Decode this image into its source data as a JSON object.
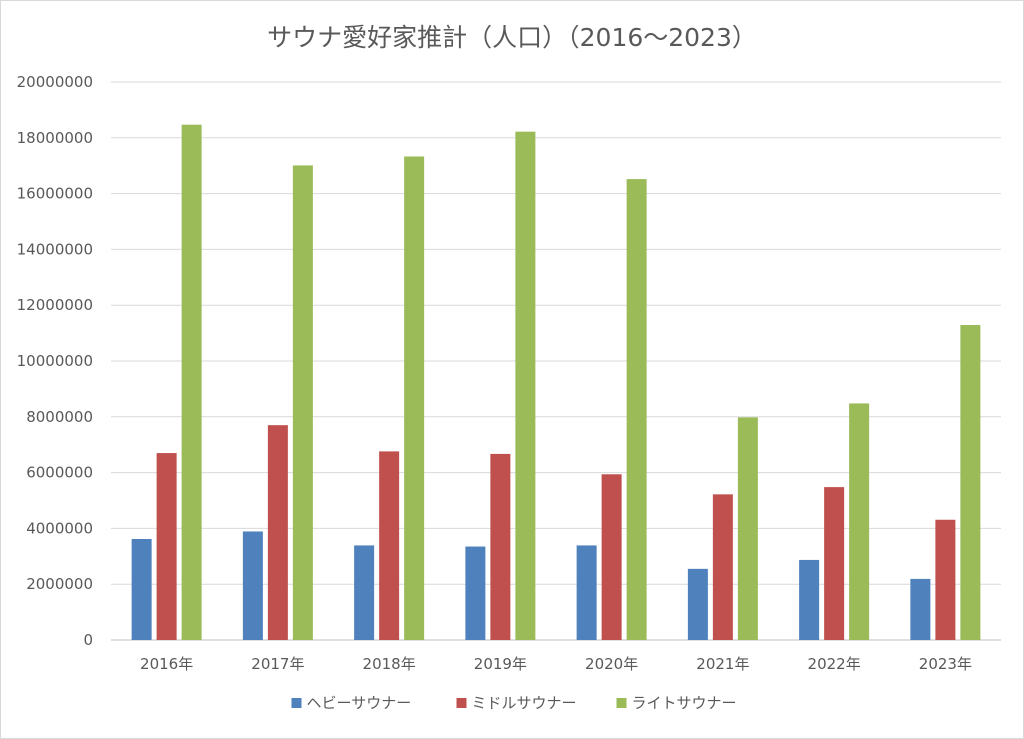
{
  "chart_data": {
    "type": "bar",
    "title": "サウナ愛好家推計（人口）（2016～2023）",
    "categories": [
      "2016年",
      "2017年",
      "2018年",
      "2019年",
      "2020年",
      "2021年",
      "2022年",
      "2023年"
    ],
    "series": [
      {
        "name": "ヘビーサウナー",
        "color": "#4f81bd",
        "values": [
          3620000,
          3890000,
          3390000,
          3350000,
          3390000,
          2550000,
          2870000,
          2190000
        ]
      },
      {
        "name": "ミドルサウナー",
        "color": "#c0504d",
        "values": [
          6700000,
          7700000,
          6760000,
          6670000,
          5940000,
          5220000,
          5480000,
          4310000
        ]
      },
      {
        "name": "ライトサウナー",
        "color": "#9bbb59",
        "values": [
          18470000,
          17010000,
          17330000,
          18220000,
          16520000,
          7980000,
          8480000,
          11290000
        ]
      }
    ],
    "yticks": [
      "0",
      "2000000",
      "4000000",
      "6000000",
      "8000000",
      "10000000",
      "12000000",
      "14000000",
      "16000000",
      "18000000",
      "20000000"
    ],
    "ylim": [
      0,
      20000000
    ],
    "xlabel": "",
    "ylabel": "",
    "grid": true,
    "legend_position": "bottom"
  }
}
